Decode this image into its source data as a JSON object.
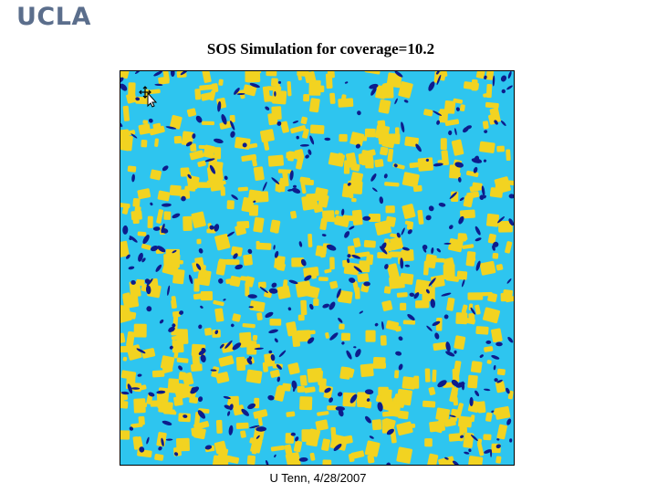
{
  "header": {
    "logo_text": "UCLA"
  },
  "figure": {
    "title": "SOS Simulation for coverage=10.2",
    "caption": "U Tenn, 4/28/2007",
    "colors": {
      "background": "#2ec5ef",
      "islands": "#f2d321",
      "pits": "#0d1c8c"
    },
    "cursor_icon": "move-cursor-icon"
  }
}
